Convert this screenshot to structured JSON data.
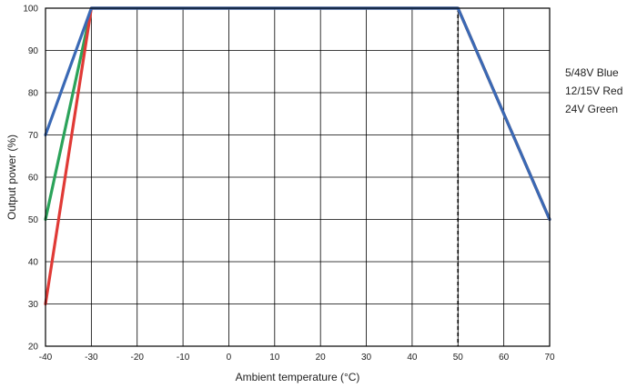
{
  "chart_data": {
    "type": "line",
    "title": "",
    "xlabel": "Ambient temperature (°C)",
    "ylabel": "Output power (%)",
    "xlim": [
      -40,
      70
    ],
    "ylim": [
      20,
      100
    ],
    "xticks": [
      -40,
      -30,
      -20,
      -10,
      0,
      10,
      20,
      30,
      40,
      50,
      60,
      70
    ],
    "yticks": [
      20,
      30,
      40,
      50,
      60,
      70,
      80,
      90,
      100
    ],
    "grid": true,
    "reference_line": {
      "x": 50,
      "style": "dashed",
      "color": "#000000"
    },
    "legend": {
      "placement": "right",
      "entries": [
        "5/48V Blue",
        "12/15V Red",
        "24V Green"
      ]
    },
    "series": [
      {
        "color": "#2ba35a",
        "x": [
          -40,
          -30,
          50,
          70
        ],
        "y": [
          50,
          100,
          100,
          50
        ]
      },
      {
        "color": "#e03a36",
        "x": [
          -40,
          -30,
          50,
          70
        ],
        "y": [
          30,
          100,
          100,
          50
        ]
      },
      {
        "color": "#3a69b5",
        "x": [
          -40,
          -30,
          50,
          70
        ],
        "y": [
          70,
          100,
          100,
          50
        ]
      }
    ]
  }
}
